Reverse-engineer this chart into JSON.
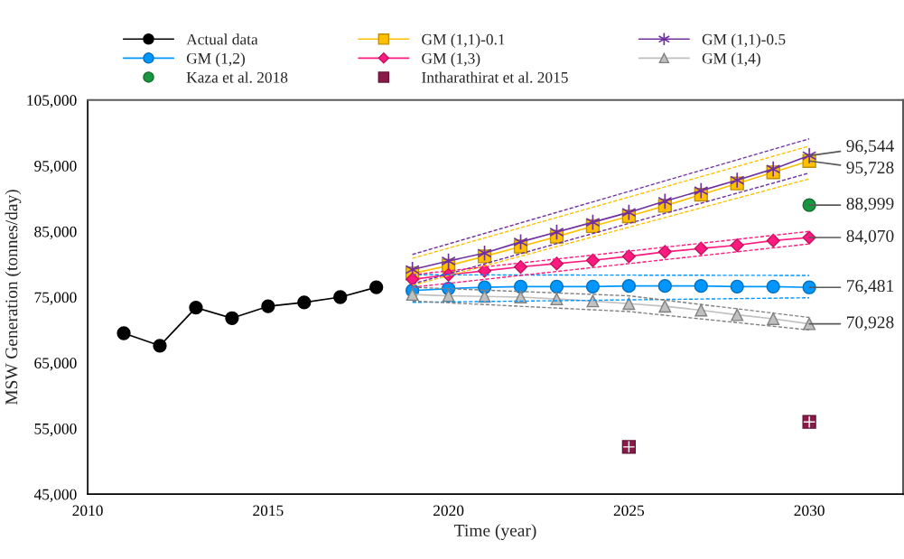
{
  "chart_data": {
    "type": "line",
    "xlabel": "Time (year)",
    "ylabel": "MSW Generation (tonnes/day)",
    "xlim": [
      2010,
      2032.6
    ],
    "xticks": [
      2010,
      2015,
      2020,
      2025,
      2030
    ],
    "ylim": [
      45000,
      105000
    ],
    "yticks": [
      {
        "value": 45000,
        "label": "45,000"
      },
      {
        "value": 55000,
        "label": "55,000"
      },
      {
        "value": 65000,
        "label": "65,000"
      },
      {
        "value": 75000,
        "label": "75,000"
      },
      {
        "value": 85000,
        "label": "85,000"
      },
      {
        "value": 95000,
        "label": "95,000"
      },
      {
        "value": 105000,
        "label": "105,000"
      }
    ],
    "grid": false,
    "legend": "top",
    "series": [
      {
        "name": "Actual data",
        "color": "#000000",
        "marker": "circle",
        "x": [
          2011,
          2012,
          2013,
          2014,
          2015,
          2016,
          2017,
          2018
        ],
        "values": [
          69500,
          67600,
          73400,
          71800,
          73600,
          74200,
          75000,
          76500
        ]
      },
      {
        "name": "GM (1,1)-0.1",
        "color": "#ffc000",
        "marker": "square",
        "x": [
          2019,
          2020,
          2021,
          2022,
          2023,
          2024,
          2025,
          2026,
          2027,
          2028,
          2029,
          2030
        ],
        "values": [
          78600,
          79800,
          81200,
          82700,
          84200,
          85800,
          87300,
          88900,
          90600,
          92300,
          94000,
          95728
        ],
        "value_labels": [
          null,
          null,
          null,
          null,
          null,
          null,
          null,
          null,
          null,
          null,
          null,
          "95,728"
        ]
      },
      {
        "name": "GM (1,1)-0.5",
        "color": "#7030a0",
        "marker": "cross",
        "x": [
          2019,
          2020,
          2021,
          2022,
          2023,
          2024,
          2025,
          2026,
          2027,
          2028,
          2029,
          2030
        ],
        "values": [
          79200,
          80500,
          81700,
          83400,
          84900,
          86400,
          87900,
          89600,
          91200,
          92800,
          94500,
          96544
        ],
        "value_labels": [
          null,
          null,
          null,
          null,
          null,
          null,
          null,
          null,
          null,
          null,
          null,
          "96,544"
        ]
      },
      {
        "name": "GM (1,2)",
        "color": "#0096ff",
        "marker": "circle",
        "x": [
          2019,
          2020,
          2021,
          2022,
          2023,
          2024,
          2025,
          2026,
          2027,
          2028,
          2029,
          2030
        ],
        "values": [
          76000,
          76300,
          76500,
          76600,
          76600,
          76600,
          76700,
          76700,
          76700,
          76600,
          76600,
          76481
        ],
        "value_labels": [
          null,
          null,
          null,
          null,
          null,
          null,
          null,
          null,
          null,
          null,
          null,
          "76,481"
        ]
      },
      {
        "name": "GM (1,3)",
        "color": "#ff1a7f",
        "marker": "diamond",
        "x": [
          2019,
          2020,
          2021,
          2022,
          2023,
          2024,
          2025,
          2026,
          2027,
          2028,
          2029,
          2030
        ],
        "values": [
          77700,
          78400,
          79000,
          79600,
          80100,
          80600,
          81200,
          81900,
          82400,
          82900,
          83600,
          84070
        ],
        "value_labels": [
          null,
          null,
          null,
          null,
          null,
          null,
          null,
          null,
          null,
          null,
          null,
          "84,070"
        ]
      },
      {
        "name": "GM (1,4)",
        "color": "#c0c0c0",
        "marker": "triangle",
        "x": [
          2019,
          2020,
          2021,
          2022,
          2023,
          2024,
          2025,
          2026,
          2027,
          2028,
          2029,
          2030
        ],
        "values": [
          75400,
          75200,
          75100,
          75000,
          74700,
          74400,
          74000,
          73600,
          73000,
          72300,
          71700,
          70928
        ],
        "value_labels": [
          null,
          null,
          null,
          null,
          null,
          null,
          null,
          null,
          null,
          null,
          null,
          "70,928"
        ]
      },
      {
        "name": "Kaza et al. 2018",
        "type": "scatter",
        "color": "#1a9641",
        "marker": "circle",
        "x": [
          2030
        ],
        "values": [
          88999
        ],
        "value_labels": [
          "88,999"
        ]
      },
      {
        "name": "Intharathirat et al. 2015",
        "type": "scatter",
        "color": "#8b1a4a",
        "marker": "square",
        "x": [
          2025,
          2030
        ],
        "values": [
          52200,
          56000
        ]
      },
      {
        "color": "#ffc000",
        "line_style": "dashed",
        "marker": "none",
        "x": [
          2019,
          2030
        ],
        "values": [
          80900,
          98000
        ]
      },
      {
        "color": "#ffc000",
        "line_style": "dashed",
        "marker": "none",
        "x": [
          2019,
          2030
        ],
        "values": [
          76800,
          93000
        ]
      },
      {
        "color": "#7030a0",
        "line_style": "dashed",
        "marker": "none",
        "x": [
          2019,
          2030
        ],
        "values": [
          81500,
          99100
        ]
      },
      {
        "color": "#7030a0",
        "line_style": "dashed",
        "marker": "none",
        "x": [
          2019,
          2030
        ],
        "values": [
          77000,
          93900
        ]
      },
      {
        "color": "#0096ff",
        "line_style": "dashed",
        "marker": "none",
        "x": [
          2019,
          2030
        ],
        "values": [
          78400,
          78300
        ]
      },
      {
        "color": "#0096ff",
        "line_style": "dashed",
        "marker": "none",
        "x": [
          2019,
          2030
        ],
        "values": [
          74200,
          74900
        ]
      },
      {
        "color": "#ff1a7f",
        "line_style": "dashed",
        "marker": "none",
        "x": [
          2019,
          2030
        ],
        "values": [
          78400,
          85000
        ]
      },
      {
        "color": "#ff1a7f",
        "line_style": "dashed",
        "marker": "none",
        "x": [
          2019,
          2030
        ],
        "values": [
          76500,
          83100
        ]
      },
      {
        "color": "#808080",
        "line_style": "dashed",
        "marker": "none",
        "x": [
          2019,
          2025,
          2030
        ],
        "values": [
          76500,
          75200,
          71900
        ]
      },
      {
        "color": "#808080",
        "line_style": "dashed",
        "marker": "none",
        "x": [
          2019,
          2025,
          2030
        ],
        "values": [
          74400,
          72800,
          70000
        ]
      }
    ]
  }
}
